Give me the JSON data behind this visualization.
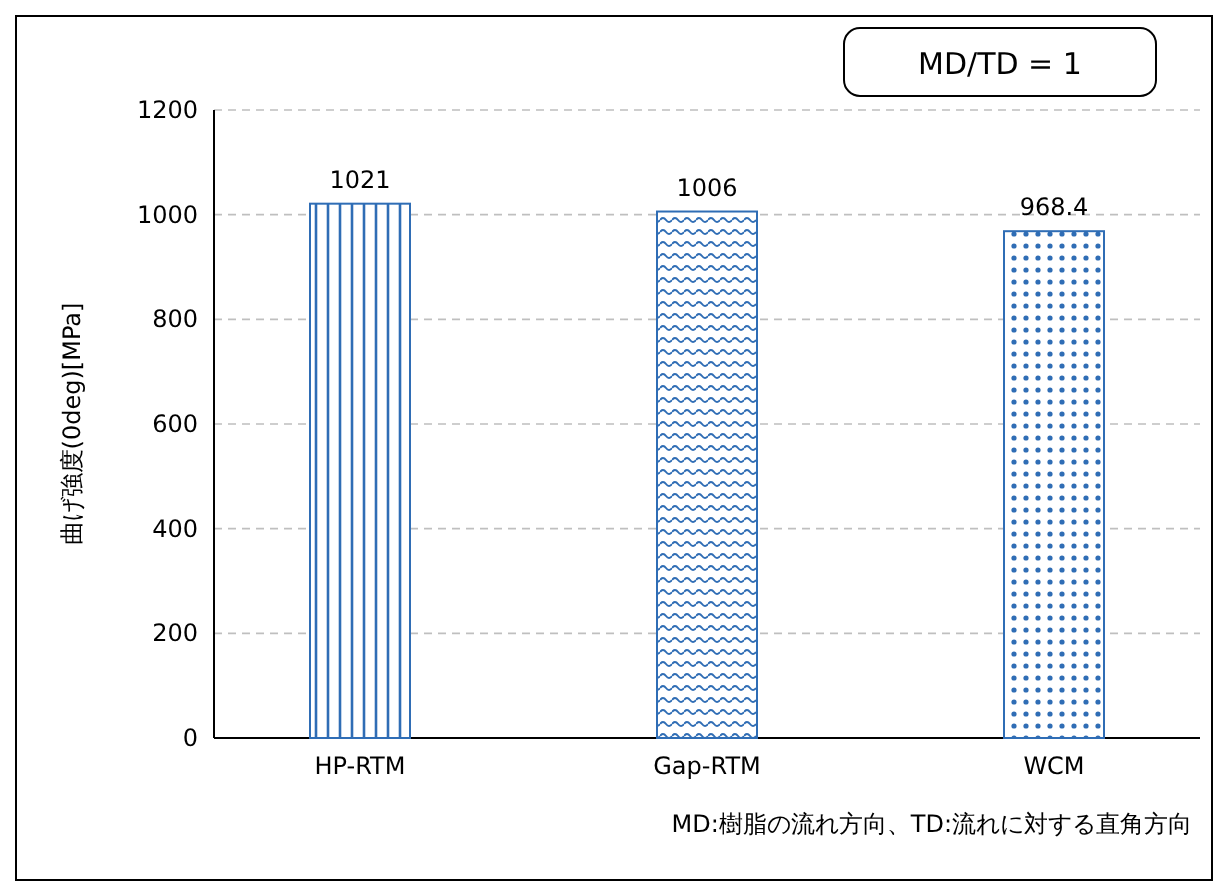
{
  "chart_data": {
    "type": "bar",
    "ylabel": "曲げ強度(0deg)[MPa]",
    "categories": [
      "HP-RTM",
      "Gap-RTM",
      "WCM"
    ],
    "values": [
      1021,
      1006,
      968.4
    ],
    "colors": [
      "#2f6db5",
      "#2f6db5",
      "#2f6db5"
    ],
    "ylim": [
      0,
      1200
    ],
    "yticks": [
      0,
      200,
      400,
      600,
      800,
      1000,
      1200
    ],
    "grid": "y",
    "data_labels": true,
    "annotations": [
      "MD/TD = 1",
      "MD:樹脂の流れ方向、TD:流れに対する直角方向"
    ]
  }
}
